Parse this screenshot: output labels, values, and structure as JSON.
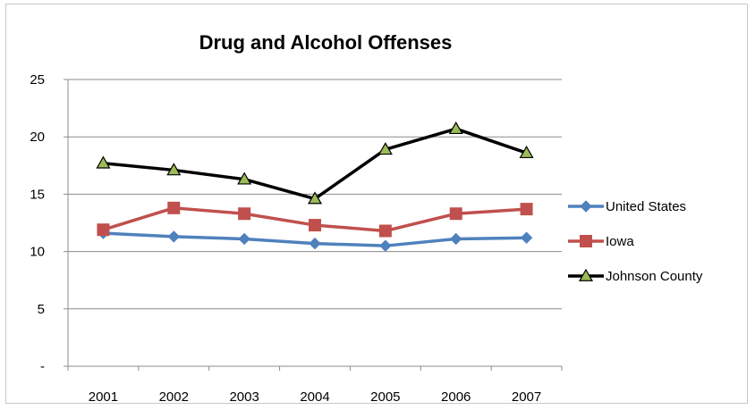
{
  "chart_data": {
    "type": "line",
    "title": "Drug and Alcohol Offenses",
    "xlabel": "",
    "ylabel": "",
    "categories": [
      "2001",
      "2002",
      "2003",
      "2004",
      "2005",
      "2006",
      "2007"
    ],
    "ylim": [
      0,
      25
    ],
    "yticks": [
      {
        "value": 0,
        "label": "-"
      },
      {
        "value": 5,
        "label": "5"
      },
      {
        "value": 10,
        "label": "10"
      },
      {
        "value": 15,
        "label": "15"
      },
      {
        "value": 20,
        "label": "20"
      },
      {
        "value": 25,
        "label": "25"
      }
    ],
    "grid": true,
    "legend": "right",
    "series": [
      {
        "name": "United States",
        "color": "#4f81bd",
        "marker": "diamond",
        "values": [
          11.6,
          11.3,
          11.1,
          10.7,
          10.5,
          11.1,
          11.2
        ]
      },
      {
        "name": "Iowa",
        "color": "#c0504d",
        "marker": "square",
        "values": [
          11.9,
          13.8,
          13.3,
          12.3,
          11.8,
          13.3,
          13.7
        ]
      },
      {
        "name": "Johnson County",
        "color": "#000000",
        "marker": "triangle",
        "marker_fill": "#9bbb59",
        "values": [
          17.7,
          17.1,
          16.3,
          14.6,
          18.9,
          20.7,
          18.6
        ]
      }
    ]
  }
}
